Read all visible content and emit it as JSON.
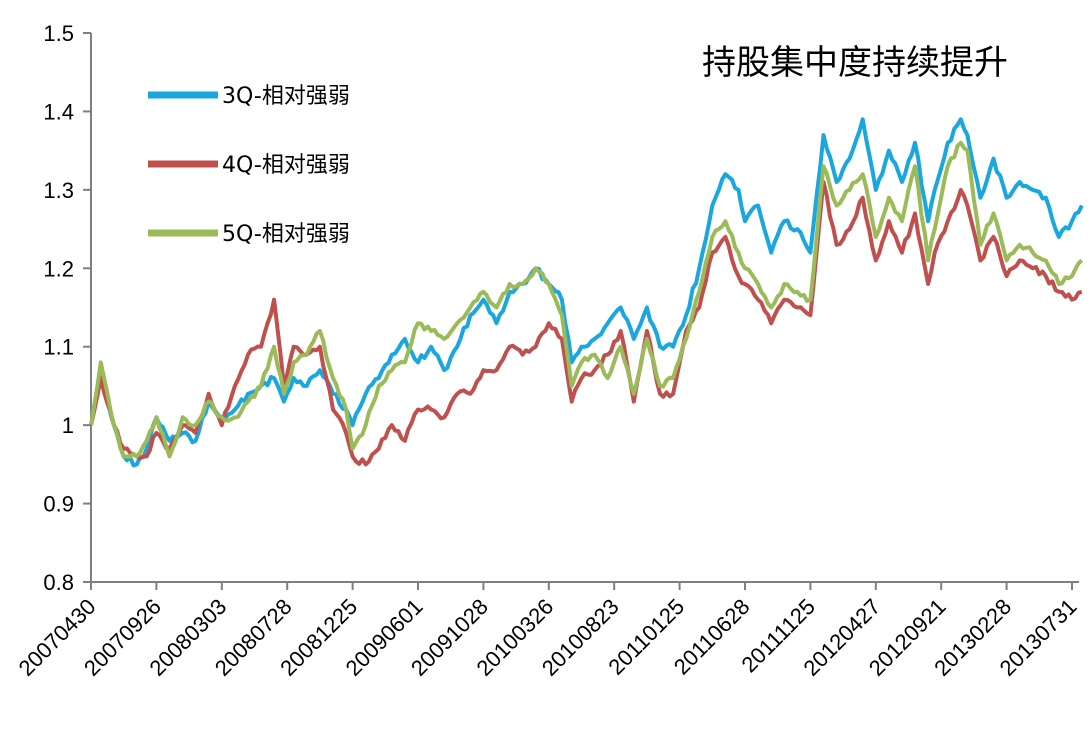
{
  "chart_data": {
    "type": "line",
    "title": "持股集中度持续提升",
    "xlabel": "",
    "ylabel": "",
    "ylim": [
      0.8,
      1.5
    ],
    "yticks": [
      "0.8",
      "0.9",
      "1",
      "1.1",
      "1.2",
      "1.3",
      "1.4",
      "1.5"
    ],
    "xtick_labels": [
      "20070430",
      "20070926",
      "20080303",
      "20080728",
      "20081225",
      "20090601",
      "20091028",
      "20100326",
      "20100823",
      "20110125",
      "20110628",
      "20111125",
      "20120427",
      "20120921",
      "20130228",
      "20130731"
    ],
    "legend_position": "top-left",
    "grid": false,
    "x_index_domain": [
      0,
      15.15
    ],
    "series": [
      {
        "name": "3Q-相对强弱",
        "color": "#1aa7e0",
        "x": [
          0,
          0.15,
          0.35,
          0.5,
          0.7,
          0.85,
          1.0,
          1.2,
          1.4,
          1.6,
          1.8,
          2.0,
          2.2,
          2.4,
          2.6,
          2.8,
          2.95,
          3.1,
          3.3,
          3.5,
          3.7,
          3.9,
          4.0,
          4.2,
          4.4,
          4.6,
          4.8,
          5.0,
          5.2,
          5.4,
          5.6,
          5.8,
          6.0,
          6.2,
          6.4,
          6.6,
          6.8,
          7.0,
          7.2,
          7.35,
          7.5,
          7.7,
          7.9,
          8.1,
          8.3,
          8.5,
          8.7,
          8.9,
          9.1,
          9.3,
          9.5,
          9.7,
          9.9,
          10.0,
          10.2,
          10.4,
          10.6,
          10.8,
          11.0,
          11.2,
          11.4,
          11.6,
          11.8,
          12.0,
          12.2,
          12.4,
          12.6,
          12.8,
          12.9,
          13.1,
          13.3,
          13.4,
          13.6,
          13.8,
          14.0,
          14.2,
          14.4,
          14.6,
          14.8,
          15.0,
          15.15
        ],
        "values": [
          1.0,
          1.07,
          1.0,
          0.96,
          0.95,
          0.97,
          1.01,
          0.98,
          0.99,
          0.98,
          1.03,
          1.01,
          1.02,
          1.04,
          1.05,
          1.06,
          1.03,
          1.06,
          1.05,
          1.07,
          1.04,
          1.02,
          1.0,
          1.04,
          1.06,
          1.09,
          1.11,
          1.08,
          1.1,
          1.07,
          1.1,
          1.14,
          1.16,
          1.13,
          1.17,
          1.18,
          1.2,
          1.18,
          1.16,
          1.08,
          1.1,
          1.11,
          1.13,
          1.15,
          1.11,
          1.15,
          1.1,
          1.1,
          1.14,
          1.2,
          1.28,
          1.32,
          1.3,
          1.26,
          1.28,
          1.22,
          1.26,
          1.25,
          1.22,
          1.37,
          1.31,
          1.34,
          1.39,
          1.3,
          1.35,
          1.31,
          1.36,
          1.26,
          1.3,
          1.36,
          1.39,
          1.37,
          1.29,
          1.34,
          1.29,
          1.31,
          1.3,
          1.29,
          1.24,
          1.26,
          1.28
        ]
      },
      {
        "name": "4Q-相对强弱",
        "color": "#c0504d",
        "x": [
          0,
          0.15,
          0.35,
          0.5,
          0.7,
          0.85,
          1.0,
          1.2,
          1.4,
          1.6,
          1.8,
          2.0,
          2.2,
          2.4,
          2.6,
          2.8,
          2.95,
          3.1,
          3.3,
          3.5,
          3.7,
          3.9,
          4.0,
          4.2,
          4.4,
          4.6,
          4.8,
          5.0,
          5.2,
          5.4,
          5.6,
          5.8,
          6.0,
          6.2,
          6.4,
          6.6,
          6.8,
          7.0,
          7.2,
          7.35,
          7.5,
          7.7,
          7.9,
          8.1,
          8.3,
          8.5,
          8.7,
          8.9,
          9.1,
          9.3,
          9.5,
          9.7,
          9.9,
          10.0,
          10.2,
          10.4,
          10.6,
          10.8,
          11.0,
          11.2,
          11.4,
          11.6,
          11.8,
          12.0,
          12.2,
          12.4,
          12.6,
          12.8,
          12.9,
          13.1,
          13.3,
          13.4,
          13.6,
          13.8,
          14.0,
          14.2,
          14.4,
          14.6,
          14.8,
          15.0,
          15.15
        ],
        "values": [
          1.0,
          1.06,
          1.0,
          0.97,
          0.96,
          0.96,
          0.99,
          0.97,
          1.0,
          0.99,
          1.04,
          1.0,
          1.05,
          1.09,
          1.1,
          1.16,
          1.05,
          1.1,
          1.09,
          1.1,
          1.02,
          0.99,
          0.96,
          0.95,
          0.97,
          1.0,
          0.98,
          1.02,
          1.02,
          1.01,
          1.04,
          1.04,
          1.07,
          1.07,
          1.1,
          1.09,
          1.1,
          1.13,
          1.11,
          1.03,
          1.06,
          1.07,
          1.09,
          1.12,
          1.03,
          1.12,
          1.04,
          1.04,
          1.12,
          1.15,
          1.22,
          1.24,
          1.19,
          1.18,
          1.16,
          1.13,
          1.16,
          1.15,
          1.14,
          1.31,
          1.23,
          1.25,
          1.29,
          1.21,
          1.26,
          1.22,
          1.27,
          1.18,
          1.22,
          1.26,
          1.3,
          1.28,
          1.21,
          1.24,
          1.19,
          1.21,
          1.2,
          1.19,
          1.17,
          1.16,
          1.17
        ]
      },
      {
        "name": "5Q-相对强弱",
        "color": "#9bbb59",
        "x": [
          0,
          0.15,
          0.35,
          0.5,
          0.7,
          0.85,
          1.0,
          1.2,
          1.4,
          1.6,
          1.8,
          2.0,
          2.2,
          2.4,
          2.6,
          2.8,
          2.95,
          3.1,
          3.3,
          3.5,
          3.7,
          3.9,
          4.0,
          4.2,
          4.4,
          4.6,
          4.8,
          5.0,
          5.2,
          5.4,
          5.6,
          5.8,
          6.0,
          6.2,
          6.4,
          6.6,
          6.8,
          7.0,
          7.2,
          7.35,
          7.5,
          7.7,
          7.9,
          8.1,
          8.3,
          8.5,
          8.7,
          8.9,
          9.1,
          9.3,
          9.5,
          9.7,
          9.9,
          10.0,
          10.2,
          10.4,
          10.6,
          10.8,
          11.0,
          11.2,
          11.4,
          11.6,
          11.8,
          12.0,
          12.2,
          12.4,
          12.6,
          12.8,
          12.9,
          13.1,
          13.3,
          13.4,
          13.6,
          13.8,
          14.0,
          14.2,
          14.4,
          14.6,
          14.8,
          15.0,
          15.15
        ],
        "values": [
          1.0,
          1.08,
          1.0,
          0.96,
          0.96,
          0.98,
          1.01,
          0.96,
          1.01,
          1.0,
          1.03,
          1.01,
          1.01,
          1.03,
          1.05,
          1.1,
          1.04,
          1.08,
          1.09,
          1.12,
          1.06,
          1.02,
          0.97,
          1.0,
          1.05,
          1.07,
          1.08,
          1.13,
          1.12,
          1.11,
          1.13,
          1.15,
          1.17,
          1.15,
          1.18,
          1.18,
          1.2,
          1.18,
          1.14,
          1.05,
          1.08,
          1.09,
          1.06,
          1.1,
          1.04,
          1.11,
          1.05,
          1.06,
          1.11,
          1.17,
          1.24,
          1.26,
          1.22,
          1.2,
          1.18,
          1.15,
          1.18,
          1.17,
          1.16,
          1.33,
          1.28,
          1.3,
          1.32,
          1.24,
          1.29,
          1.26,
          1.33,
          1.21,
          1.25,
          1.33,
          1.36,
          1.35,
          1.23,
          1.27,
          1.21,
          1.23,
          1.22,
          1.21,
          1.18,
          1.19,
          1.21
        ]
      }
    ]
  }
}
